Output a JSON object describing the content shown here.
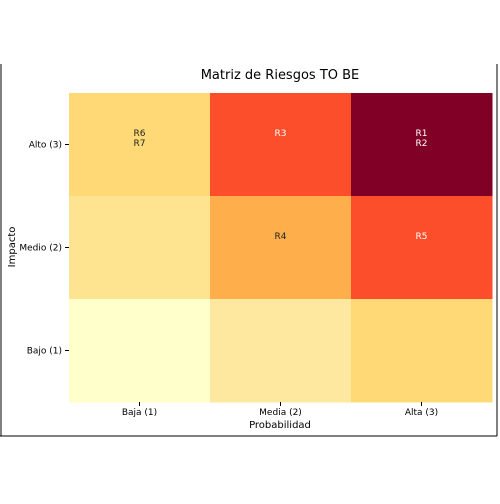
{
  "chart_data": {
    "type": "heatmap",
    "title": "Matriz de Riesgos TO BE",
    "xlabel": "Probabilidad",
    "ylabel": "Impacto",
    "x_categories": [
      "Baja (1)",
      "Media (2)",
      "Alta (3)"
    ],
    "y_categories": [
      "Alto (3)",
      "Medio (2)",
      "Bajo (1)"
    ],
    "cells": [
      [
        {
          "color": "#FED976",
          "labels": "R6\nR7",
          "text_color": "#222222"
        },
        {
          "color": "#FC4E2A",
          "labels": "R3",
          "text_color": "#ffffff"
        },
        {
          "color": "#800026",
          "labels": "R1\nR2",
          "text_color": "#ffffff"
        }
      ],
      [
        {
          "color": "#FEE391",
          "labels": "",
          "text_color": "#222222"
        },
        {
          "color": "#FEAE4B",
          "labels": "R4",
          "text_color": "#222222"
        },
        {
          "color": "#FC4E2A",
          "labels": "R5",
          "text_color": "#ffffff"
        }
      ],
      [
        {
          "color": "#FFFFCC",
          "labels": "",
          "text_color": "#222222"
        },
        {
          "color": "#FEE8A0",
          "labels": "",
          "text_color": "#222222"
        },
        {
          "color": "#FED976",
          "labels": "",
          "text_color": "#222222"
        }
      ]
    ],
    "grid": false,
    "legend": "none"
  }
}
